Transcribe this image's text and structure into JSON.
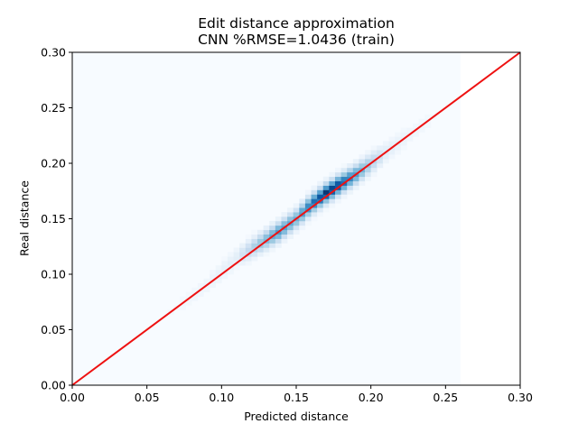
{
  "chart_data": {
    "type": "heatmap",
    "title": "Edit distance approximation",
    "subtitle": "CNN %RMSE=1.0436 (train)",
    "xlabel": "Predicted distance",
    "ylabel": "Real distance",
    "xlim": [
      0.0,
      0.3
    ],
    "ylim": [
      0.0,
      0.3
    ],
    "xticks": [
      "0.00",
      "0.05",
      "0.10",
      "0.15",
      "0.20",
      "0.25",
      "0.30"
    ],
    "yticks": [
      "0.00",
      "0.05",
      "0.10",
      "0.15",
      "0.20",
      "0.25",
      "0.30"
    ],
    "xtick_values": [
      0.0,
      0.05,
      0.1,
      0.15,
      0.2,
      0.25,
      0.3
    ],
    "ytick_values": [
      0.0,
      0.05,
      0.1,
      0.15,
      0.2,
      0.25,
      0.3
    ],
    "heatmap_extent": {
      "x": [
        0.0,
        0.26
      ],
      "y": [
        0.0,
        0.3
      ]
    },
    "colormap": "Blues",
    "density_ridge": {
      "points": [
        {
          "x": 0.0,
          "y": 0.0,
          "w": 0.0
        },
        {
          "x": 0.05,
          "y": 0.05,
          "w": 0.01
        },
        {
          "x": 0.075,
          "y": 0.075,
          "w": 0.03
        },
        {
          "x": 0.09,
          "y": 0.09,
          "w": 0.05
        },
        {
          "x": 0.11,
          "y": 0.115,
          "w": 0.1
        },
        {
          "x": 0.127,
          "y": 0.129,
          "w": 0.45
        },
        {
          "x": 0.138,
          "y": 0.138,
          "w": 0.65
        },
        {
          "x": 0.15,
          "y": 0.15,
          "w": 0.55
        },
        {
          "x": 0.16,
          "y": 0.163,
          "w": 0.8
        },
        {
          "x": 0.17,
          "y": 0.173,
          "w": 1.0
        },
        {
          "x": 0.178,
          "y": 0.18,
          "w": 0.95
        },
        {
          "x": 0.19,
          "y": 0.19,
          "w": 0.65
        },
        {
          "x": 0.2,
          "y": 0.2,
          "w": 0.35
        },
        {
          "x": 0.21,
          "y": 0.21,
          "w": 0.12
        },
        {
          "x": 0.225,
          "y": 0.225,
          "w": 0.05
        },
        {
          "x": 0.245,
          "y": 0.245,
          "w": 0.02
        },
        {
          "x": 0.26,
          "y": 0.26,
          "w": 0.0
        }
      ]
    },
    "reference_line": {
      "x": [
        0.0,
        0.3
      ],
      "y": [
        0.0,
        0.3
      ],
      "color": "#ee1111"
    },
    "colors": {
      "low": "#f7fbff",
      "high": "#08306b",
      "line": "#ee1111"
    },
    "grid": false
  }
}
